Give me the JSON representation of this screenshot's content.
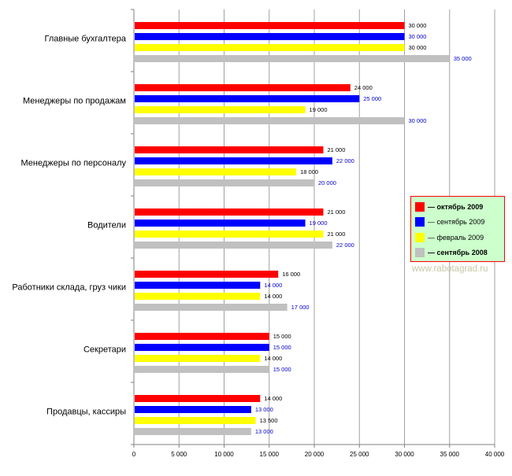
{
  "chart_data": {
    "type": "bar",
    "orientation": "horizontal",
    "categories": [
      "Главные бухгалтера",
      "Менеджеры по продажам",
      "Менеджеры по персоналу",
      "Водители",
      "Работники склада, груз чики",
      "Секретари",
      "Продавцы, кассиры"
    ],
    "series": [
      {
        "name": "— октябрь 2009",
        "color": "#ff0000",
        "label_color": "#000000",
        "bold": true,
        "values": [
          30000,
          24000,
          21000,
          21000,
          16000,
          15000,
          14000
        ],
        "labels": [
          "30 000",
          "24 000",
          "21 000",
          "21 000",
          "16 000",
          "15 000",
          "14 000"
        ]
      },
      {
        "name": "— сентябрь 2009",
        "color": "#0000ff",
        "label_color": "#0000cc",
        "bold": false,
        "values": [
          30000,
          25000,
          22000,
          19000,
          14000,
          15000,
          13000
        ],
        "labels": [
          "30 000",
          "25 000",
          "22 000",
          "19 000",
          "14 000",
          "15 000",
          "13 000"
        ]
      },
      {
        "name": "— февраль 2009",
        "color": "#ffff00",
        "label_color": "#000000",
        "bold": false,
        "values": [
          30000,
          19000,
          18000,
          21000,
          14000,
          14000,
          13500
        ],
        "labels": [
          "30 000",
          "19 000",
          "18 000",
          "21 000",
          "14 000",
          "14 000",
          "13 500"
        ]
      },
      {
        "name": "— сентябрь 2008",
        "color": "#c0c0c0",
        "label_color": "#0000cc",
        "bold": true,
        "values": [
          35000,
          30000,
          20000,
          22000,
          17000,
          15000,
          13000
        ],
        "labels": [
          "35 000",
          "30 000",
          "20 000",
          "22 000",
          "17 000",
          "15 000",
          "13 000"
        ]
      }
    ],
    "xlim": [
      0,
      40000
    ],
    "xticks": [
      0,
      5000,
      10000,
      15000,
      20000,
      25000,
      30000,
      35000,
      40000
    ],
    "xtick_labels": [
      "0",
      "5 000",
      "10 000",
      "15 000",
      "20 000",
      "25 000",
      "30 000",
      "35 000",
      "40 000"
    ],
    "grid": true,
    "legend_position": "right"
  },
  "watermark": "www.rabotagrad.ru"
}
